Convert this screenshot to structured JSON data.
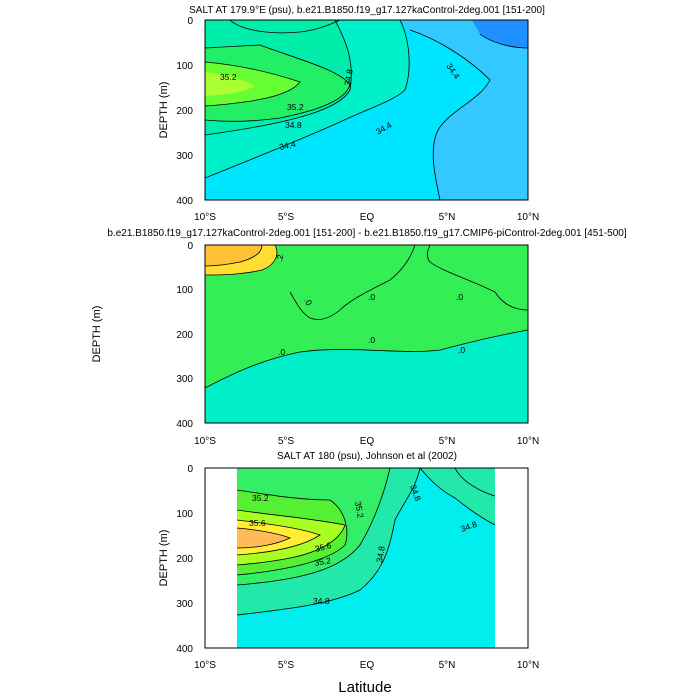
{
  "figure": {
    "xlabel": "Latitude"
  },
  "chart_data": [
    {
      "type": "heatmap",
      "title": "SALT AT 179.9°E (psu), b.e21.B1850.f19_g17.127kaControl-2deg.001 [151-200]",
      "ylabel": "DEPTH (m)",
      "x_ticks": [
        "10°S",
        "5°S",
        "EQ",
        "5°N",
        "10°N"
      ],
      "x_range": [
        -10,
        10
      ],
      "y_ticks": [
        "0",
        "100",
        "200",
        "300",
        "400"
      ],
      "y_range": [
        0,
        400
      ],
      "contour_labels": [
        "35.2",
        "35.2",
        "34.8",
        "34.8",
        "34.4",
        "34.4",
        "34.4"
      ],
      "palette": {
        "low_salinity": "#1e90ff",
        "mid": "#00e5ff",
        "high": "#66ff66",
        "max": "#aaff33"
      }
    },
    {
      "type": "heatmap",
      "title": "b.e21.B1850.f19_g17.127kaControl-2deg.001 [151-200] - b.e21.B1850.f19_g17.CMIP6-piControl-2deg.001 [451-500]",
      "ylabel": "DEPTH (m)",
      "x_ticks": [
        "10°S",
        "5°S",
        "EQ",
        "5°N",
        "10°N"
      ],
      "x_range": [
        -10,
        10
      ],
      "y_ticks": [
        "0",
        "100",
        "200",
        "300",
        "400"
      ],
      "y_range": [
        0,
        400
      ],
      "contour_labels": [
        ".2",
        ".0",
        ".0",
        ".0",
        ".0",
        ".0",
        ".0"
      ],
      "palette": {
        "negative": "#00eec8",
        "zero": "#33ee55",
        "positive": "#ffdd33",
        "max": "#ffaa33"
      }
    },
    {
      "type": "heatmap",
      "title": "SALT AT 180 (psu), Johnson et al (2002)",
      "ylabel": "DEPTH (m)",
      "x_ticks": [
        "10°S",
        "5°S",
        "EQ",
        "5°N",
        "10°N"
      ],
      "x_range": [
        -10,
        10
      ],
      "y_ticks": [
        "0",
        "100",
        "200",
        "300",
        "400"
      ],
      "y_range": [
        0,
        400
      ],
      "data_x_range": [
        -8,
        8
      ],
      "contour_labels": [
        "35.2",
        "35.6",
        "35.6",
        "35.2",
        "35.2",
        "34.8",
        "34.8",
        "34.8",
        "34.8"
      ],
      "palette": {
        "low": "#00eeee",
        "mid": "#33ee88",
        "high": "#66ff33",
        "higher": "#ffee33",
        "max": "#ffaa55"
      }
    }
  ]
}
